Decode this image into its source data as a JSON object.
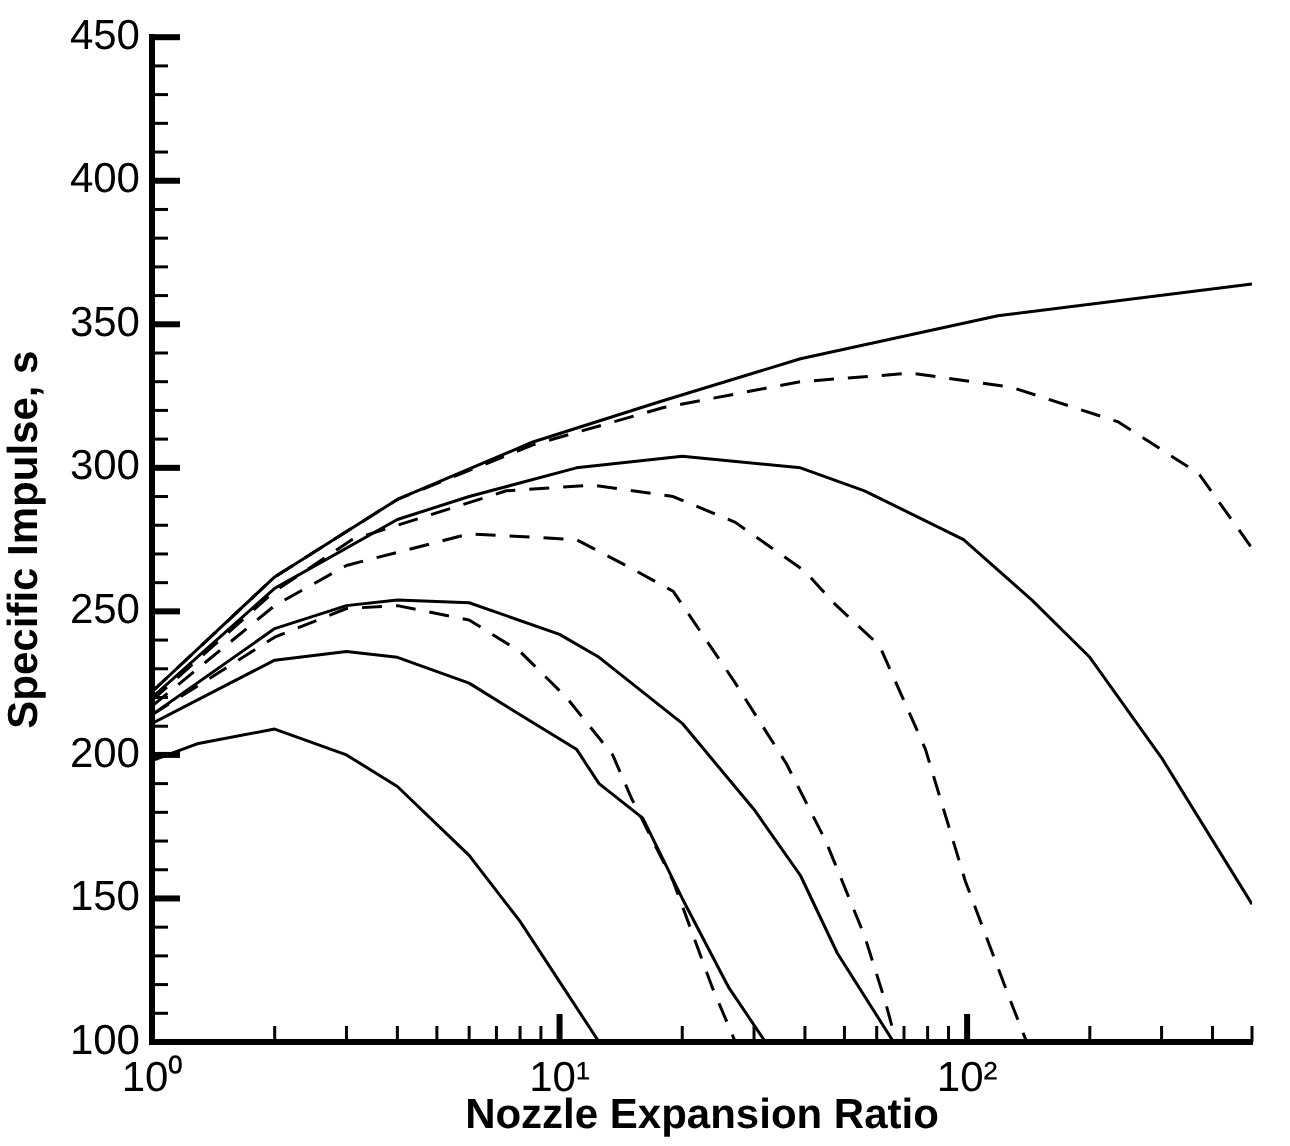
{
  "chart_data": {
    "type": "line",
    "xlabel": "Nozzle Expansion Ratio",
    "ylabel": "Specific Impulse, s",
    "log": "x",
    "grid": false,
    "legend": false,
    "marker": "none",
    "xlim": [
      1,
      500
    ],
    "xticks": [
      {
        "value": 1,
        "label": "10⁰"
      },
      {
        "value": 2,
        "label": null
      },
      {
        "value": 3,
        "label": null
      },
      {
        "value": 4,
        "label": null
      },
      {
        "value": 5,
        "label": null
      },
      {
        "value": 6,
        "label": null
      },
      {
        "value": 7,
        "label": null
      },
      {
        "value": 8,
        "label": null
      },
      {
        "value": 9,
        "label": null
      },
      {
        "value": 10,
        "label": "10¹"
      },
      {
        "value": 20,
        "label": null
      },
      {
        "value": 30,
        "label": null
      },
      {
        "value": 40,
        "label": null
      },
      {
        "value": 50,
        "label": null
      },
      {
        "value": 60,
        "label": null
      },
      {
        "value": 70,
        "label": null
      },
      {
        "value": 80,
        "label": null
      },
      {
        "value": 90,
        "label": null
      },
      {
        "value": 100,
        "label": "10²"
      },
      {
        "value": 200,
        "label": null
      },
      {
        "value": 300,
        "label": null
      },
      {
        "value": 400,
        "label": null
      },
      {
        "value": 500,
        "label": null
      }
    ],
    "ylim": [
      100,
      450
    ],
    "yticks": [
      100,
      {
        "value": 110,
        "label": null
      },
      {
        "value": 120,
        "label": null
      },
      {
        "value": 130,
        "label": null
      },
      {
        "value": 140,
        "label": null
      },
      150,
      {
        "value": 160,
        "label": null
      },
      {
        "value": 170,
        "label": null
      },
      {
        "value": 180,
        "label": null
      },
      {
        "value": 190,
        "label": null
      },
      200,
      {
        "value": 210,
        "label": null
      },
      {
        "value": 220,
        "label": null
      },
      {
        "value": 230,
        "label": null
      },
      {
        "value": 240,
        "label": null
      },
      250,
      {
        "value": 260,
        "label": null
      },
      {
        "value": 270,
        "label": null
      },
      {
        "value": 280,
        "label": null
      },
      {
        "value": 290,
        "label": null
      },
      300,
      {
        "value": 310,
        "label": null
      },
      {
        "value": 320,
        "label": null
      },
      {
        "value": 330,
        "label": null
      },
      {
        "value": 340,
        "label": null
      },
      350,
      {
        "value": 360,
        "label": null
      },
      {
        "value": 370,
        "label": null
      },
      {
        "value": 380,
        "label": null
      },
      {
        "value": 390,
        "label": null
      },
      400,
      {
        "value": 410,
        "label": null
      },
      {
        "value": 420,
        "label": null
      },
      {
        "value": 430,
        "label": null
      },
      {
        "value": 440,
        "label": null
      },
      450
    ],
    "series": [
      {
        "color": "#000000",
        "line_style": "solid",
        "x": [
          1,
          2,
          4,
          8.6,
          17.6,
          39,
          119,
          500
        ],
        "values": [
          222,
          262,
          289,
          309,
          323,
          338,
          353,
          364
        ]
      },
      {
        "color": "#000000",
        "line_style": "dashed",
        "x": [
          1,
          2,
          4,
          8.6,
          18,
          39,
          73,
          129,
          235,
          370,
          500
        ],
        "values": [
          222,
          262,
          289,
          308,
          321,
          330,
          333,
          328,
          316,
          298,
          272
        ]
      },
      {
        "color": "#000000",
        "line_style": "solid",
        "x": [
          1,
          2,
          4,
          6,
          11,
          20,
          39,
          56,
          98,
          144,
          200,
          300,
          500
        ],
        "values": [
          220,
          258,
          282,
          290,
          300,
          304,
          300,
          292,
          275,
          254,
          234,
          199,
          148
        ]
      },
      {
        "color": "#000000",
        "line_style": "dashed",
        "x": [
          1,
          2,
          3.1,
          7.4,
          12,
          19,
          27,
          40,
          47,
          61,
          79,
          99,
          128,
          140
        ],
        "values": [
          219,
          257,
          275,
          292,
          294,
          290,
          281,
          264,
          253,
          238,
          202,
          156,
          114,
          100
        ]
      },
      {
        "color": "#000000",
        "line_style": "dashed",
        "x": [
          1,
          2,
          3,
          6,
          11,
          15,
          19,
          27,
          36,
          45,
          56,
          63,
          67
        ],
        "values": [
          217,
          252,
          266,
          277,
          275,
          265,
          257,
          225,
          197,
          170,
          137,
          114,
          100
        ]
      },
      {
        "color": "#000000",
        "line_style": "solid",
        "x": [
          1,
          2,
          3,
          4,
          6,
          10,
          12.5,
          20,
          30,
          39,
          48,
          66
        ],
        "values": [
          214,
          244,
          252,
          254,
          253,
          242,
          234,
          211,
          181,
          158,
          131,
          100
        ]
      },
      {
        "color": "#000000",
        "line_style": "dashed",
        "x": [
          1,
          2,
          3,
          4,
          6,
          8,
          10.4,
          13.5,
          15,
          19,
          23.7,
          27
        ],
        "values": [
          214,
          241,
          251,
          252,
          247,
          236,
          220,
          200,
          185,
          156,
          119,
          100
        ]
      },
      {
        "color": "#000000",
        "line_style": "solid",
        "x": [
          1,
          2,
          3,
          4,
          6,
          8,
          11,
          12.5,
          16,
          20,
          26,
          32
        ],
        "values": [
          211,
          233,
          236,
          234,
          225,
          214,
          202,
          190,
          178,
          150,
          119,
          100
        ]
      },
      {
        "color": "#000000",
        "line_style": "solid",
        "x": [
          1,
          1.3,
          2,
          3,
          4,
          6,
          8,
          12.5
        ],
        "values": [
          198,
          204,
          209,
          200,
          189,
          165,
          142,
          100
        ]
      }
    ]
  }
}
